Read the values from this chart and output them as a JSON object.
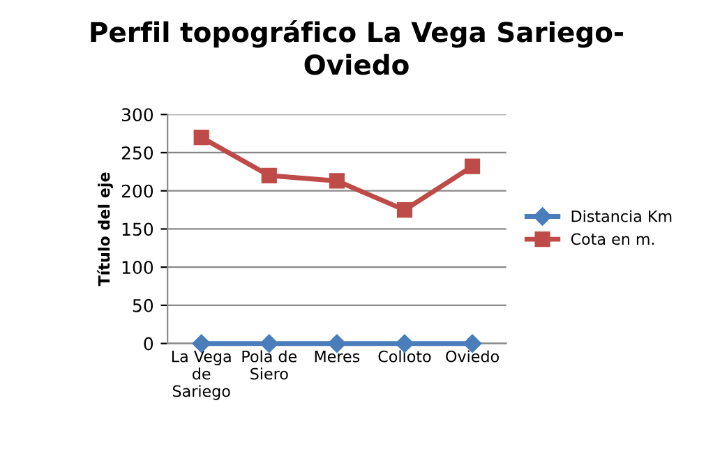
{
  "chart_data": {
    "type": "line",
    "title": "Perfil topográfico La Vega Sariego-\nOviedo",
    "ylabel": "Título del eje",
    "categories": [
      "La Vega\nde\nSariego",
      "Pola de\nSiero",
      "Meres",
      "Colloto",
      "Oviedo"
    ],
    "series": [
      {
        "name": "Distancia Km",
        "color": "#4a7ebb",
        "marker": "diamond",
        "values": [
          0,
          0,
          0,
          0,
          0
        ]
      },
      {
        "name": "Cota en m.",
        "color": "#be4b48",
        "marker": "square",
        "values": [
          270,
          220,
          213,
          175,
          232
        ]
      }
    ],
    "ylim": [
      0,
      300
    ],
    "yticks": [
      0,
      50,
      100,
      150,
      200,
      250,
      300
    ],
    "grid": "y",
    "legend": "right"
  }
}
